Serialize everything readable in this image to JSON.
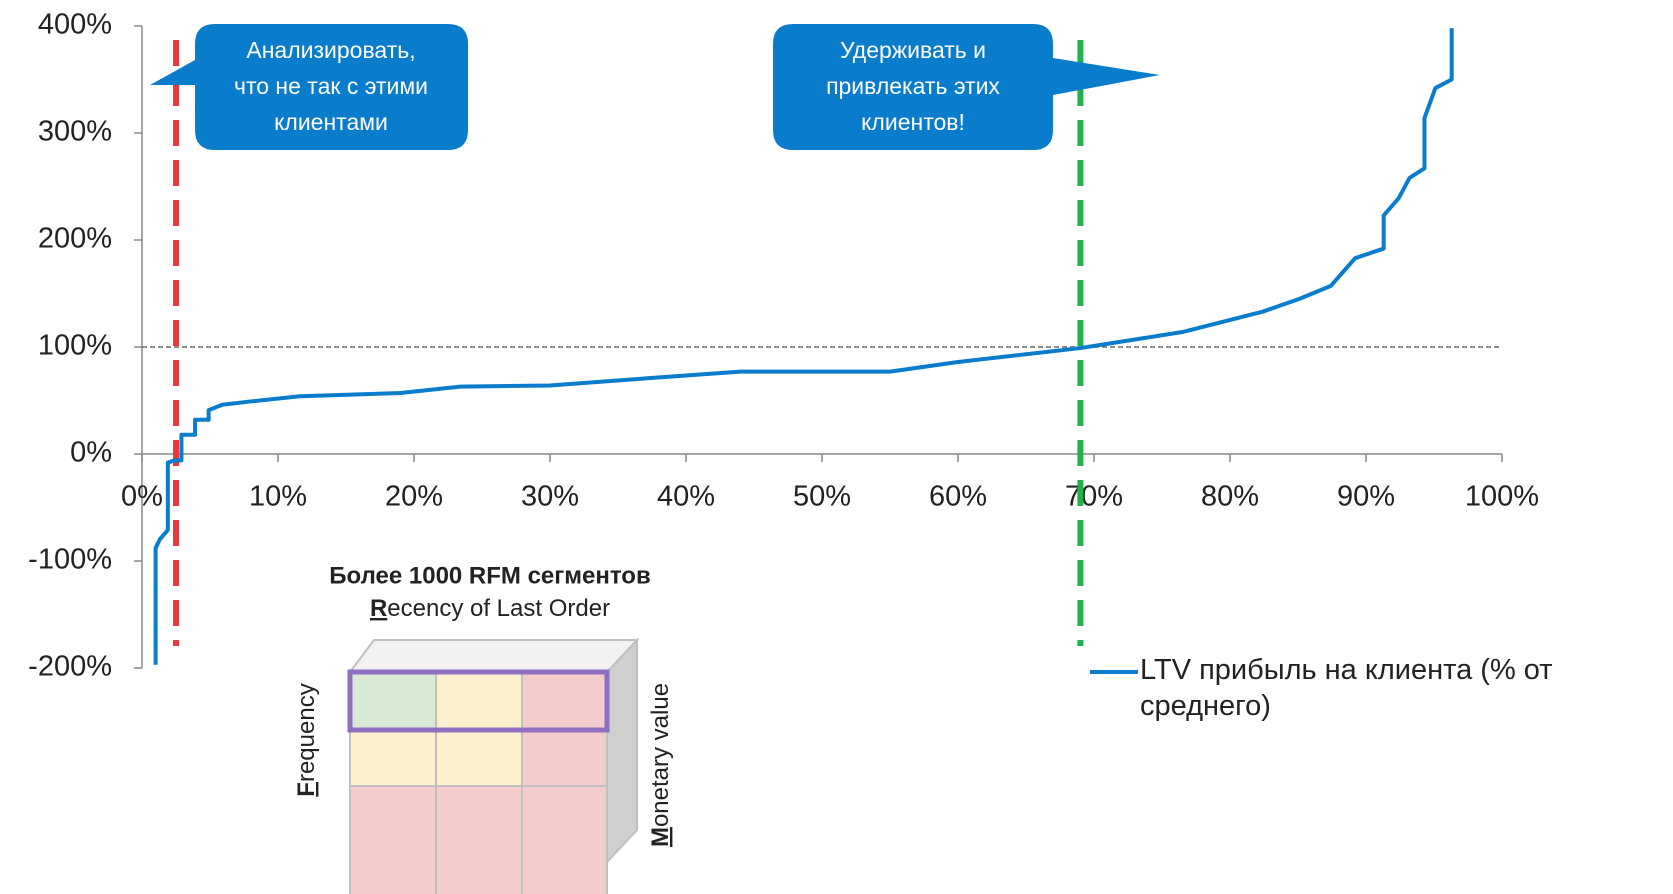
{
  "chart_data": {
    "type": "line",
    "series": [
      {
        "name": "LTV прибыль на клиента (% от среднего)",
        "color": "#0a7ccc",
        "x": [
          1,
          1,
          1.3,
          1.9,
          1.9,
          2.4,
          2.9,
          2.9,
          3.9,
          3.9,
          4.9,
          4.9,
          5.9,
          7.9,
          11.6,
          19,
          23.4,
          30,
          37.4,
          44,
          55,
          60,
          69,
          76.5,
          82.4,
          85.1,
          87.4,
          89.2,
          91.3,
          91.3,
          92.4,
          93.2,
          94.3,
          94.3,
          95.1,
          96.3,
          96.3
        ],
        "values": [
          -197,
          -88,
          -80,
          -71,
          -8,
          -6,
          -6,
          18,
          18,
          32,
          32,
          41,
          46,
          49,
          54,
          57,
          63,
          64,
          71,
          77,
          77,
          86,
          99,
          114,
          133,
          145,
          157,
          183,
          192,
          223,
          239,
          258,
          267,
          314,
          342,
          350,
          398
        ]
      }
    ],
    "xlim": [
      0,
      100
    ],
    "xticks": [
      {
        "value": 0,
        "label": "0%"
      },
      {
        "value": 10,
        "label": "10%"
      },
      {
        "value": 20,
        "label": "20%"
      },
      {
        "value": 30,
        "label": "30%"
      },
      {
        "value": 40,
        "label": "40%"
      },
      {
        "value": 50,
        "label": "50%"
      },
      {
        "value": 60,
        "label": "60%"
      },
      {
        "value": 70,
        "label": "70%"
      },
      {
        "value": 80,
        "label": "80%"
      },
      {
        "value": 90,
        "label": "90%"
      },
      {
        "value": 100,
        "label": "100%"
      }
    ],
    "ylim": [
      -200,
      400
    ],
    "yticks": [
      {
        "value": -200,
        "label": "-200%"
      },
      {
        "value": -100,
        "label": "-100%"
      },
      {
        "value": 0,
        "label": "0%"
      },
      {
        "value": 100,
        "label": "100%"
      },
      {
        "value": 200,
        "label": "200%"
      },
      {
        "value": 300,
        "label": "300%"
      },
      {
        "value": 400,
        "label": "400%"
      }
    ],
    "reference_lines": [
      {
        "axis": "y",
        "value": 100,
        "color": "#666666"
      },
      {
        "axis": "x",
        "value": 2.5,
        "color": "#e8383d"
      },
      {
        "axis": "x",
        "value": 69,
        "color": "#1fb14b"
      }
    ],
    "annotations": [
      {
        "lines": [
          "Анализировать,",
          "что не так с этими",
          "клиентами"
        ]
      },
      {
        "lines": [
          "Удерживать и",
          "привлекать этих",
          "клиентов!"
        ]
      }
    ],
    "inset": {
      "title": "Более 1000 RFM сегментов",
      "recency": {
        "initial": "R",
        "rest": "ecency of Last Order"
      },
      "frequency": {
        "initial": "F",
        "rest": "requency"
      },
      "monetary": {
        "initial": "M",
        "rest": "onetary value"
      }
    }
  }
}
